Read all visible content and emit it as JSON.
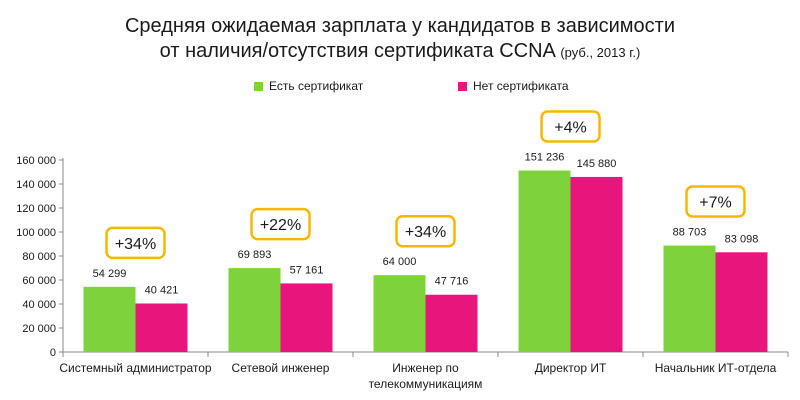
{
  "chart_data": {
    "type": "bar",
    "title_line1": "Средняя ожидаемая зарплата у кандидатов в зависимости",
    "title_line2": "от наличия/отсутствия сертификата CCNA",
    "title_note": "(руб., 2013 г.)",
    "categories": [
      [
        "Системный администратор"
      ],
      [
        "Сетевой инженер"
      ],
      [
        "Инженер по",
        "телекоммуникациям"
      ],
      [
        "Директор ИТ"
      ],
      [
        "Начальник ИТ-отдела"
      ]
    ],
    "series": [
      {
        "name": "Есть сертификат",
        "color": "#7ed23c",
        "values": [
          54299,
          69893,
          64000,
          151236,
          88703
        ],
        "labels": [
          "54 299",
          "69 893",
          "64 000",
          "151 236",
          "88 703"
        ]
      },
      {
        "name": "Нет сертификата",
        "color": "#e8167c",
        "values": [
          40421,
          57161,
          47716,
          145880,
          83098
        ],
        "labels": [
          "40 421",
          "57 161",
          "47 716",
          "145 880",
          "83 098"
        ]
      }
    ],
    "badges": [
      "+34%",
      "+22%",
      "+34%",
      "+4%",
      "+7%"
    ],
    "badge_color": "#f5b800",
    "yticks": [
      0,
      20000,
      40000,
      60000,
      80000,
      100000,
      120000,
      140000,
      160000
    ],
    "ytick_labels": [
      "0",
      "20 000",
      "40 000",
      "60 000",
      "80 000",
      "100 000",
      "120 000",
      "140 000",
      "160 000"
    ],
    "ylim": [
      0,
      160000
    ],
    "xlabel": "",
    "ylabel": "",
    "legend_position": "top"
  }
}
